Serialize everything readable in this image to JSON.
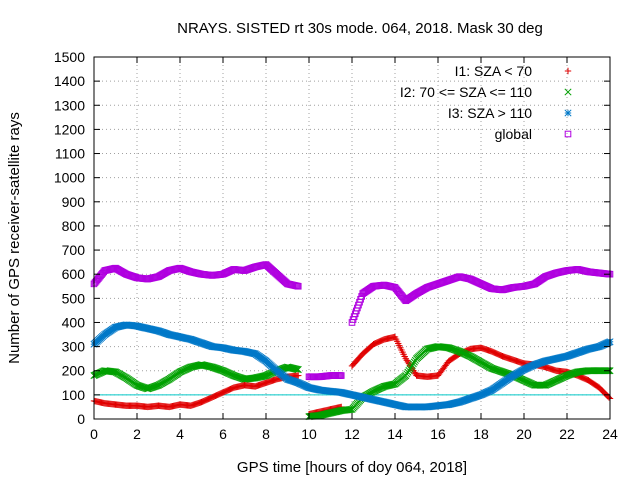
{
  "chart_data": {
    "type": "scatter",
    "title": "NRAYS. SISTED rt 30s mode. 064, 2018. Mask 30 deg",
    "xlabel": "GPS time [hours of doy 064, 2018]",
    "ylabel": "Number of GPS receiver-satellite rays",
    "xlim": [
      0,
      24
    ],
    "ylim": [
      0,
      1500
    ],
    "x_ticks": [
      0,
      2,
      4,
      6,
      8,
      10,
      12,
      14,
      16,
      18,
      20,
      22,
      24
    ],
    "y_ticks": [
      0,
      100,
      200,
      300,
      400,
      500,
      600,
      700,
      800,
      900,
      1000,
      1100,
      1200,
      1300,
      1400,
      1500
    ],
    "grid": true,
    "legend_position": "top-right",
    "reference_line": {
      "y": 100,
      "color": "#00c8c8"
    },
    "series": [
      {
        "name": "I1: SZA < 70",
        "marker": "+",
        "color": "#e00000",
        "x": [
          0,
          0.5,
          1,
          1.5,
          2,
          2.5,
          3,
          3.5,
          4,
          4.5,
          5,
          5.5,
          6,
          6.5,
          7,
          7.5,
          8,
          8.5,
          9,
          9.5,
          10,
          10.5,
          11,
          11.5,
          12,
          12.5,
          13,
          13.5,
          14,
          14.5,
          15,
          15.5,
          16,
          16.5,
          17,
          17.5,
          18,
          18.5,
          19,
          19.5,
          20,
          20.5,
          21,
          21.5,
          22,
          22.5,
          23,
          23.5,
          24
        ],
        "y": [
          75,
          65,
          60,
          55,
          55,
          50,
          55,
          50,
          60,
          55,
          70,
          90,
          110,
          130,
          140,
          135,
          150,
          165,
          175,
          180,
          20,
          30,
          40,
          50,
          220,
          270,
          310,
          330,
          340,
          250,
          180,
          175,
          180,
          240,
          270,
          290,
          295,
          280,
          260,
          245,
          230,
          225,
          215,
          200,
          195,
          180,
          160,
          130,
          85
        ]
      },
      {
        "name": "I2: 70 <= SZA <= 110",
        "marker": "x",
        "color": "#00a000",
        "x": [
          0,
          0.5,
          1,
          1.5,
          2,
          2.5,
          3,
          3.5,
          4,
          4.5,
          5,
          5.5,
          6,
          6.5,
          7,
          7.5,
          8,
          8.5,
          9,
          9.5,
          10,
          10.5,
          11,
          11.5,
          12,
          12.5,
          13,
          13.5,
          14,
          14.5,
          15,
          15.5,
          16,
          16.5,
          17,
          17.5,
          18,
          18.5,
          19,
          19.5,
          20,
          20.5,
          21,
          21.5,
          22,
          22.5,
          23,
          23.5,
          24
        ],
        "y": [
          180,
          200,
          195,
          170,
          140,
          125,
          140,
          165,
          195,
          215,
          225,
          215,
          200,
          180,
          165,
          170,
          180,
          200,
          215,
          205,
          10,
          15,
          25,
          35,
          40,
          90,
          115,
          135,
          145,
          180,
          250,
          290,
          300,
          295,
          280,
          260,
          235,
          210,
          195,
          180,
          160,
          140,
          140,
          160,
          180,
          195,
          200,
          200,
          200
        ]
      },
      {
        "name": "I3: SZA > 110",
        "marker": "*",
        "color": "#0078c8",
        "x": [
          0,
          0.5,
          1,
          1.5,
          2,
          2.5,
          3,
          3.5,
          4,
          4.5,
          5,
          5.5,
          6,
          6.5,
          7,
          7.5,
          8,
          8.5,
          9,
          9.5,
          10,
          10.5,
          11,
          11.5,
          12,
          12.5,
          13,
          13.5,
          14,
          14.5,
          15,
          15.5,
          16,
          16.5,
          17,
          17.5,
          18,
          18.5,
          19,
          19.5,
          20,
          20.5,
          21,
          21.5,
          22,
          22.5,
          23,
          23.5,
          24
        ],
        "y": [
          310,
          350,
          380,
          390,
          385,
          375,
          365,
          350,
          340,
          330,
          315,
          300,
          295,
          285,
          280,
          270,
          240,
          200,
          165,
          150,
          130,
          120,
          115,
          110,
          100,
          90,
          80,
          70,
          60,
          50,
          50,
          50,
          55,
          60,
          70,
          85,
          100,
          120,
          150,
          180,
          205,
          225,
          240,
          250,
          260,
          275,
          290,
          300,
          320
        ]
      },
      {
        "name": "global",
        "marker": "square",
        "color": "#b000e0",
        "x": [
          0,
          0.5,
          1,
          1.5,
          2,
          2.5,
          3,
          3.5,
          4,
          4.5,
          5,
          5.5,
          6,
          6.5,
          7,
          7.5,
          8,
          8.5,
          9,
          9.5,
          10,
          10.5,
          11,
          11.5,
          12,
          12.5,
          13,
          13.5,
          14,
          14.5,
          15,
          15.5,
          16,
          16.5,
          17,
          17.5,
          18,
          18.5,
          19,
          19.5,
          20,
          20.5,
          21,
          21.5,
          22,
          22.5,
          23,
          23.5,
          24
        ],
        "y": [
          560,
          615,
          625,
          600,
          585,
          580,
          590,
          615,
          625,
          610,
          600,
          595,
          600,
          620,
          615,
          630,
          640,
          600,
          560,
          550,
          175,
          175,
          180,
          180,
          400,
          520,
          550,
          555,
          545,
          490,
          520,
          545,
          560,
          575,
          590,
          580,
          560,
          540,
          535,
          545,
          550,
          560,
          590,
          605,
          615,
          620,
          610,
          605,
          600
        ]
      }
    ]
  }
}
